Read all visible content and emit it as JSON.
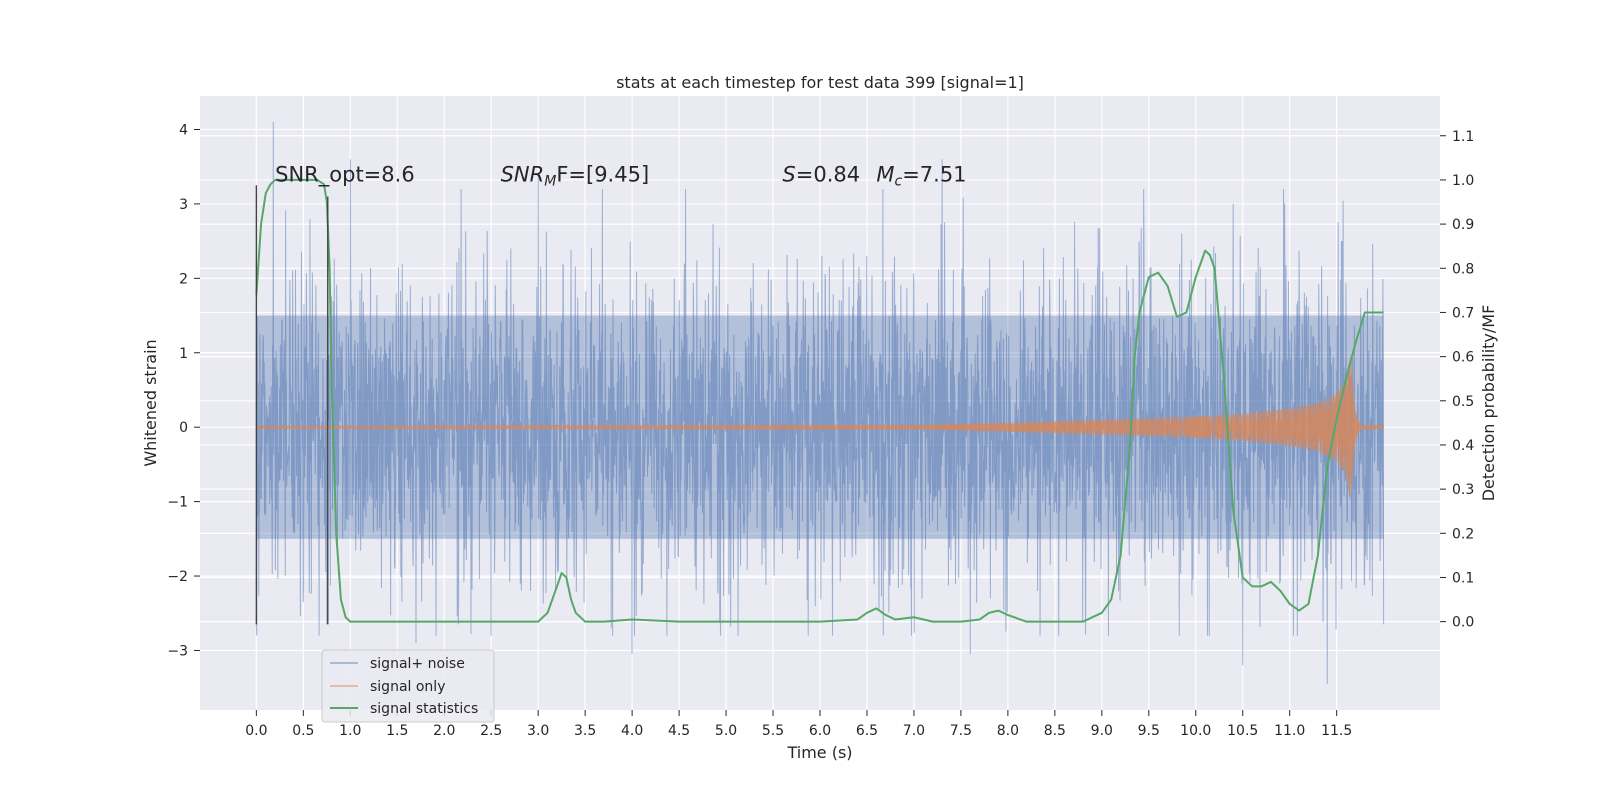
{
  "chart_data": {
    "type": "line",
    "title": "stats at each timestep for test data 399 [signal=1]",
    "xlabel": "Time (s)",
    "ylabel_left": "Whitened strain",
    "ylabel_right": "Detection probability/MF",
    "xlim": [
      -0.6,
      12.6
    ],
    "ylim_left": [
      -3.8,
      4.45
    ],
    "ylim_right": [
      -0.2,
      1.19
    ],
    "x_ticks": [
      0.0,
      0.5,
      1.0,
      1.5,
      2.0,
      2.5,
      3.0,
      3.5,
      4.0,
      4.5,
      5.0,
      5.5,
      6.0,
      6.5,
      7.0,
      7.5,
      8.0,
      8.5,
      9.0,
      9.5,
      10.0,
      10.5,
      11.0,
      11.5
    ],
    "x_tick_labels": [
      "0.0",
      "0.5",
      "1.0",
      "1.5",
      "2.0",
      "2.5",
      "3.0",
      "3.5",
      "4.0",
      "4.5",
      "5.0",
      "5.5",
      "6.0",
      "6.5",
      "7.0",
      "7.5",
      "8.0",
      "8.5",
      "9.0",
      "9.5",
      "10.0",
      "10.5",
      "11.0",
      "11.5"
    ],
    "y_ticks_left": [
      -3,
      -2,
      -1,
      0,
      1,
      2,
      3,
      4
    ],
    "y_tick_labels_left": [
      "−3",
      "−2",
      "−1",
      "0",
      "1",
      "2",
      "3",
      "4"
    ],
    "y_ticks_right": [
      0.0,
      0.1,
      0.2,
      0.3,
      0.4,
      0.5,
      0.6,
      0.7,
      0.8,
      0.9,
      1.0,
      1.1
    ],
    "y_tick_labels_right": [
      "0.0",
      "0.1",
      "0.2",
      "0.3",
      "0.4",
      "0.5",
      "0.6",
      "0.7",
      "0.8",
      "0.9",
      "1.0",
      "1.1"
    ],
    "grid": true,
    "legend_position": "lower-left",
    "series": [
      {
        "name": "signal+ noise",
        "axis": "left",
        "color": "#4c72b0",
        "kind": "noise",
        "t_range": [
          0.0,
          12.0
        ],
        "band": [
          -1.5,
          1.5
        ],
        "peak_max": [
          [
            0.18,
            4.1
          ],
          [
            1.0,
            3.6
          ],
          [
            3.0,
            3.4
          ],
          [
            7.3,
            3.6
          ],
          [
            10.4,
            3.0
          ],
          [
            11.55,
            2.5
          ]
        ],
        "peak_min": [
          [
            0.0,
            -2.65
          ],
          [
            0.75,
            -2.65
          ],
          [
            1.7,
            -2.9
          ],
          [
            4.0,
            -3.05
          ],
          [
            7.6,
            -3.05
          ],
          [
            10.5,
            -3.2
          ],
          [
            11.4,
            -3.45
          ],
          [
            12.0,
            -2.65
          ]
        ]
      },
      {
        "name": "signal only",
        "axis": "left",
        "color": "#dd8452",
        "kind": "chirp",
        "t_range": [
          0.0,
          12.0
        ],
        "envelope": [
          [
            0.0,
            0.02
          ],
          [
            7.0,
            0.03
          ],
          [
            8.0,
            0.06
          ],
          [
            9.0,
            0.1
          ],
          [
            10.0,
            0.14
          ],
          [
            10.5,
            0.18
          ],
          [
            11.0,
            0.25
          ],
          [
            11.3,
            0.32
          ],
          [
            11.5,
            0.45
          ],
          [
            11.6,
            0.65
          ],
          [
            11.65,
            1.0
          ],
          [
            11.68,
            0.3
          ],
          [
            11.75,
            0.03
          ],
          [
            12.0,
            0.02
          ]
        ]
      },
      {
        "name": "signal statistics",
        "axis": "right",
        "color": "#55a868",
        "kind": "line",
        "x": [
          0.0,
          0.05,
          0.1,
          0.15,
          0.2,
          0.3,
          0.5,
          0.65,
          0.72,
          0.75,
          0.78,
          0.8,
          0.85,
          0.9,
          0.95,
          1.0,
          1.2,
          1.5,
          2.0,
          2.5,
          3.0,
          3.1,
          3.2,
          3.25,
          3.3,
          3.35,
          3.4,
          3.5,
          3.7,
          4.0,
          4.5,
          5.0,
          5.5,
          6.0,
          6.4,
          6.5,
          6.6,
          6.7,
          6.8,
          7.0,
          7.2,
          7.5,
          7.7,
          7.8,
          7.9,
          8.0,
          8.2,
          8.5,
          8.8,
          9.0,
          9.1,
          9.2,
          9.3,
          9.35,
          9.4,
          9.5,
          9.6,
          9.7,
          9.8,
          9.9,
          10.0,
          10.1,
          10.15,
          10.2,
          10.3,
          10.4,
          10.5,
          10.6,
          10.7,
          10.8,
          10.9,
          11.0,
          11.1,
          11.2,
          11.3,
          11.4,
          11.5,
          11.6,
          11.7,
          11.8,
          11.9,
          12.0
        ],
        "y": [
          0.74,
          0.9,
          0.97,
          0.99,
          1.0,
          1.0,
          1.0,
          1.0,
          0.99,
          0.95,
          0.8,
          0.55,
          0.2,
          0.05,
          0.01,
          0.0,
          0.0,
          0.0,
          0.0,
          0.0,
          0.0,
          0.02,
          0.08,
          0.11,
          0.1,
          0.05,
          0.02,
          0.0,
          0.0,
          0.005,
          0.0,
          0.0,
          0.0,
          0.0,
          0.005,
          0.02,
          0.03,
          0.015,
          0.005,
          0.01,
          0.0,
          0.0,
          0.005,
          0.02,
          0.025,
          0.015,
          0.0,
          0.0,
          0.0,
          0.02,
          0.05,
          0.15,
          0.4,
          0.6,
          0.7,
          0.78,
          0.79,
          0.76,
          0.69,
          0.7,
          0.78,
          0.84,
          0.83,
          0.8,
          0.55,
          0.25,
          0.1,
          0.08,
          0.08,
          0.09,
          0.07,
          0.04,
          0.025,
          0.04,
          0.15,
          0.35,
          0.46,
          0.55,
          0.63,
          0.7,
          0.7,
          0.7
        ]
      }
    ],
    "vlines": [
      {
        "x": 0.0,
        "ymin": -2.65,
        "ymax": 3.25,
        "color": "#444444"
      },
      {
        "x": 0.76,
        "ymin": -2.65,
        "ymax": 3.1,
        "color": "#444444"
      }
    ],
    "annotations": [
      {
        "text": "SNR_opt=8.6",
        "x": 0.2,
        "y": 3.3
      },
      {
        "text": "SNR",
        "sub": "M",
        "rest": "F=[9.45]",
        "italic_main": true,
        "x": 2.6,
        "y": 3.3
      },
      {
        "text": "S",
        "rest": "=0.84",
        "italic_main": true,
        "x": 5.6,
        "y": 3.3
      },
      {
        "text": "M",
        "sub": "c",
        "rest": "=7.51",
        "italic_main": true,
        "x": 6.6,
        "y": 3.3
      }
    ]
  }
}
